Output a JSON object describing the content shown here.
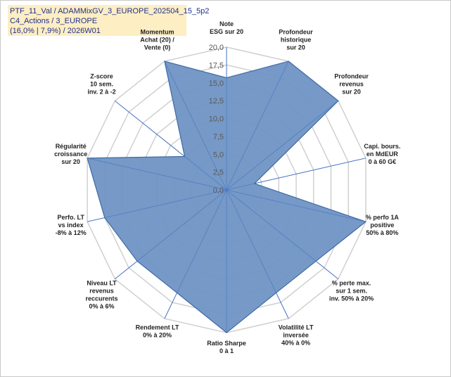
{
  "info": {
    "line1": "PTF_11_Val / ADAMMixGV_3_EUROPE_202504_15_5p2",
    "line2": "C4_Actions / 3_EUROPE",
    "line3": "(16,0% | 7,9%) / 2026W01"
  },
  "colors": {
    "fill": "#6f93c4",
    "stroke": "#3f6aa6",
    "grid": "#d0d0d0",
    "spoke": "#4472c4",
    "highlight_label": "#b9a66b"
  },
  "chart_data": {
    "type": "radar",
    "rmin": 0,
    "rmax": 20,
    "ticks": [
      0,
      2.5,
      5,
      7.5,
      10,
      12.5,
      15,
      17.5,
      20
    ],
    "tick_labels": [
      "0,0",
      "2,5",
      "5,0",
      "7,5",
      "10,0",
      "12,5",
      "15,0",
      "17,5",
      "20,0"
    ],
    "axes": [
      {
        "lines": [
          "Note",
          "ESG sur 20"
        ],
        "value": 15.7
      },
      {
        "lines": [
          "Profondeur",
          "historique",
          "sur 20"
        ],
        "value": 20
      },
      {
        "lines": [
          "Profondeur",
          "revenus",
          "sur 20"
        ],
        "value": 20
      },
      {
        "lines": [
          "Capi. bours.",
          "en MdEUR",
          "0 à 60 G€"
        ],
        "value": 4
      },
      {
        "lines": [
          "% perfo 1A",
          "positive",
          "50% à 80%"
        ],
        "value": 20
      },
      {
        "lines": [
          "% perte max.",
          "sur 1 sem.",
          "inv. 50% à 20%"
        ],
        "value": 16
      },
      {
        "lines": [
          "Volatilité LT",
          "inversée",
          "40% à 0%"
        ],
        "value": 16
      },
      {
        "lines": [
          "Ratio Sharpe",
          "0 à 1"
        ],
        "value": 20
      },
      {
        "lines": [
          "Rendement LT",
          "0% à 20%"
        ],
        "value": 16
      },
      {
        "lines": [
          "Niveau LT",
          "revenus",
          "reccurents",
          "0% à 6%"
        ],
        "value": 16
      },
      {
        "lines": [
          "Perfo. LT",
          "vs index",
          "-8% à 12%"
        ],
        "value": 17.5
      },
      {
        "lines": [
          "Régularité",
          "croissance",
          "sur 20"
        ],
        "value": 20
      },
      {
        "lines": [
          "Z-score",
          "10 sem.",
          "inv. 2 à -2"
        ],
        "value": 7.5
      },
      {
        "lines": [
          "Momentum",
          "Achat (20) /",
          "Vente (0)"
        ],
        "value": 20,
        "first_line_highlight": true
      }
    ]
  }
}
